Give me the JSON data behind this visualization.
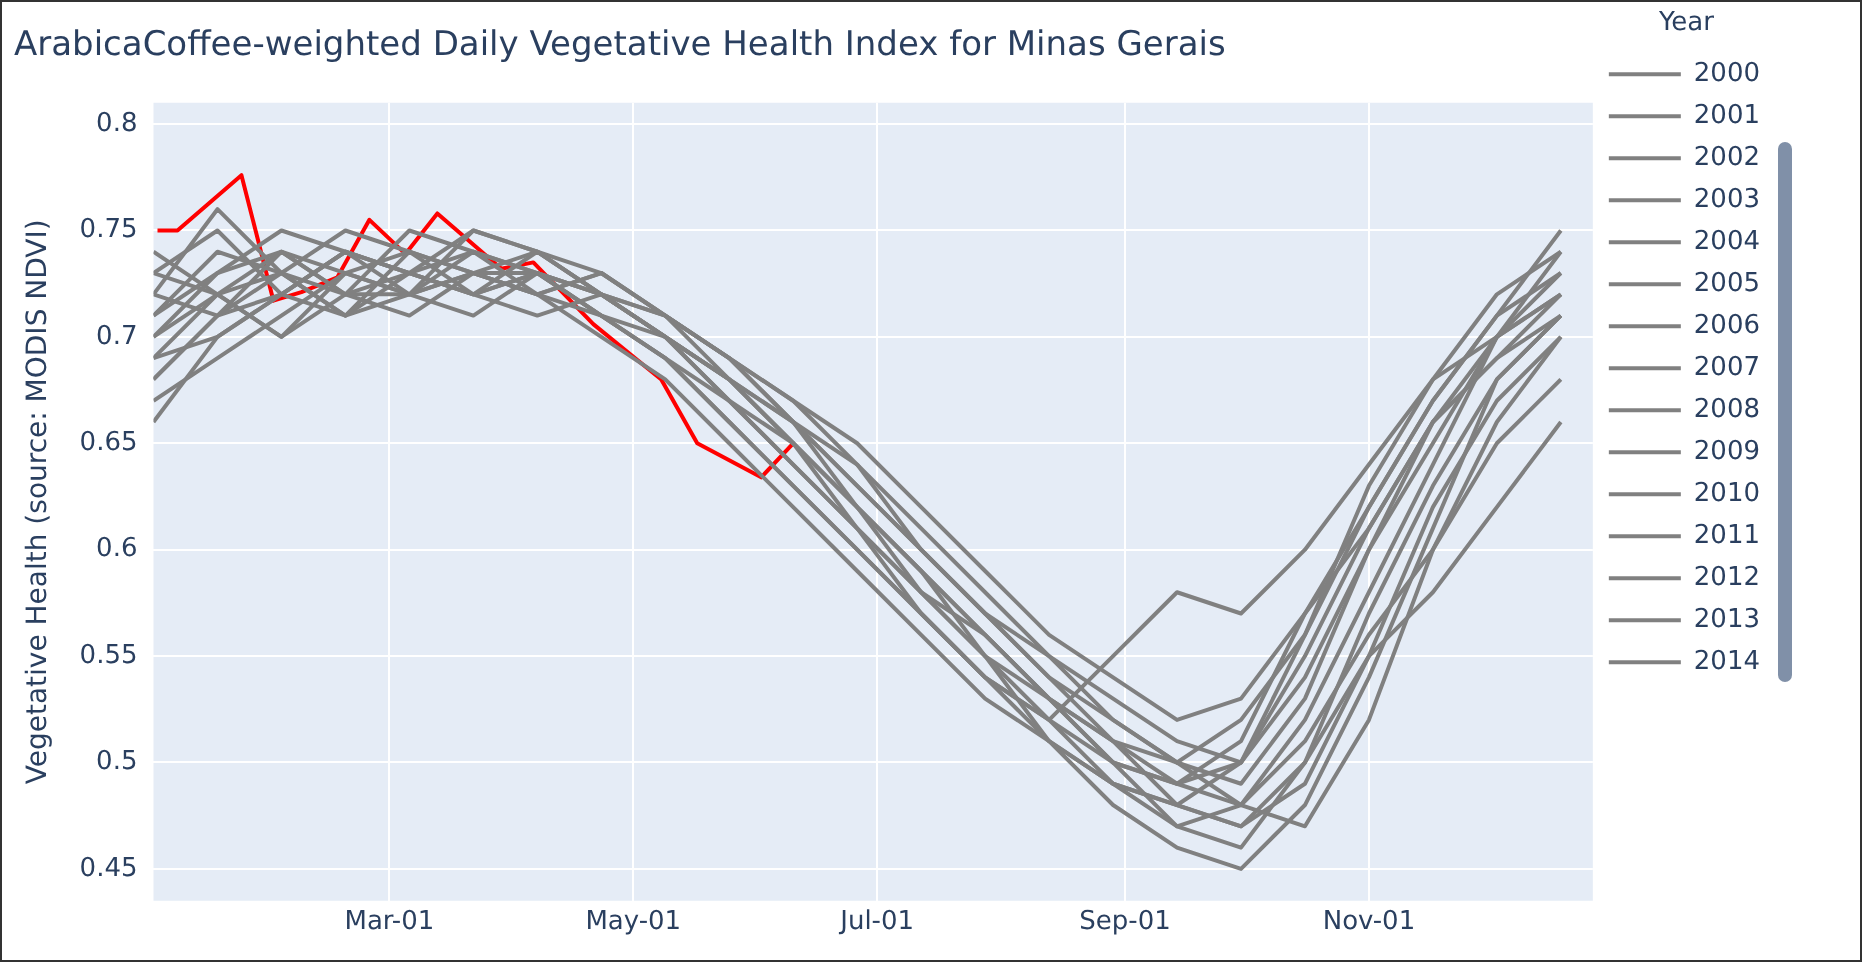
{
  "chart_data": {
    "type": "line",
    "title": "ArabicaCoffee-weighted Daily Vegetative Health Index for Minas Gerais",
    "ylabel": "Vegetative Health (source: MODIS NDVI)",
    "legend_title": "Year",
    "legend": "right",
    "grid": true,
    "marker": "none",
    "line_style": "solid",
    "x": [
      "--01-01",
      "--01-17",
      "--02-02",
      "--02-18",
      "--03-06",
      "--03-22",
      "--04-07",
      "--04-23",
      "--05-09",
      "--05-25",
      "--06-10",
      "--06-26",
      "--07-12",
      "--07-28",
      "--08-13",
      "--08-29",
      "--09-14",
      "--09-30",
      "--10-16",
      "--11-01",
      "--11-17",
      "--12-03",
      "--12-19"
    ],
    "xlim": [
      "--01-01",
      "--12-27"
    ],
    "xticks": [
      {
        "value": "--03-01",
        "label": "Mar-01"
      },
      {
        "value": "--05-01",
        "label": "May-01"
      },
      {
        "value": "--07-01",
        "label": "Jul-01"
      },
      {
        "value": "--09-01",
        "label": "Sep-01"
      },
      {
        "value": "--11-01",
        "label": "Nov-01"
      }
    ],
    "ylim": [
      0.435,
      0.81
    ],
    "yticks": [
      0.45,
      0.5,
      0.55,
      0.6,
      0.65,
      0.7,
      0.75,
      0.8
    ],
    "series": [
      {
        "name": "2000",
        "color": "#808080",
        "values": [
          0.73,
          0.75,
          0.72,
          0.74,
          0.73,
          0.74,
          0.72,
          0.71,
          0.69,
          0.66,
          0.63,
          0.6,
          0.57,
          0.54,
          0.52,
          0.5,
          0.49,
          0.48,
          0.52,
          0.58,
          0.64,
          0.7,
          0.74
        ]
      },
      {
        "name": "2001",
        "color": "#808080",
        "values": [
          0.7,
          0.72,
          0.73,
          0.71,
          0.74,
          0.73,
          0.73,
          0.72,
          0.7,
          0.68,
          0.65,
          0.62,
          0.59,
          0.56,
          0.53,
          0.51,
          0.49,
          0.5,
          0.55,
          0.61,
          0.66,
          0.69,
          0.72
        ]
      },
      {
        "name": "2002",
        "color": "#808080",
        "values": [
          0.68,
          0.71,
          0.74,
          0.72,
          0.72,
          0.75,
          0.74,
          0.73,
          0.71,
          0.69,
          0.66,
          0.63,
          0.6,
          0.57,
          0.54,
          0.51,
          0.48,
          0.47,
          0.49,
          0.55,
          0.62,
          0.67,
          0.7
        ]
      },
      {
        "name": "2003",
        "color": "#808080",
        "values": [
          0.72,
          0.76,
          0.73,
          0.71,
          0.73,
          0.72,
          0.74,
          0.72,
          0.7,
          0.67,
          0.64,
          0.61,
          0.58,
          0.55,
          0.53,
          0.5,
          0.47,
          0.46,
          0.5,
          0.57,
          0.63,
          0.68,
          0.71
        ]
      },
      {
        "name": "2004",
        "color": "#808080",
        "values": [
          0.69,
          0.7,
          0.72,
          0.74,
          0.73,
          0.72,
          0.71,
          0.72,
          0.7,
          0.68,
          0.66,
          0.64,
          0.61,
          0.58,
          0.55,
          0.52,
          0.5,
          0.49,
          0.53,
          0.6,
          0.65,
          0.7,
          0.73
        ]
      },
      {
        "name": "2005",
        "color": "#808080",
        "values": [
          0.71,
          0.73,
          0.74,
          0.72,
          0.75,
          0.74,
          0.73,
          0.71,
          0.69,
          0.67,
          0.64,
          0.61,
          0.58,
          0.56,
          0.53,
          0.51,
          0.5,
          0.52,
          0.56,
          0.62,
          0.67,
          0.71,
          0.75
        ]
      },
      {
        "name": "2006",
        "color": "#808080",
        "values": [
          0.67,
          0.69,
          0.71,
          0.73,
          0.72,
          0.73,
          0.72,
          0.7,
          0.68,
          0.65,
          0.62,
          0.59,
          0.56,
          0.53,
          0.51,
          0.49,
          0.47,
          0.48,
          0.51,
          0.56,
          0.6,
          0.65,
          0.68
        ]
      },
      {
        "name": "2007",
        "color": "#808080",
        "values": [
          0.74,
          0.72,
          0.7,
          0.73,
          0.74,
          0.73,
          0.72,
          0.73,
          0.71,
          0.69,
          0.67,
          0.64,
          0.6,
          0.57,
          0.54,
          0.52,
          0.5,
          0.48,
          0.47,
          0.52,
          0.6,
          0.66,
          0.7
        ]
      },
      {
        "name": "2008",
        "color": "#808080",
        "values": [
          0.66,
          0.7,
          0.72,
          0.71,
          0.72,
          0.74,
          0.73,
          0.71,
          0.7,
          0.67,
          0.65,
          0.62,
          0.59,
          0.55,
          0.52,
          0.49,
          0.48,
          0.5,
          0.56,
          0.63,
          0.68,
          0.72,
          0.74
        ]
      },
      {
        "name": "2009",
        "color": "#808080",
        "values": [
          0.7,
          0.73,
          0.75,
          0.74,
          0.72,
          0.73,
          0.74,
          0.72,
          0.71,
          0.69,
          0.66,
          0.63,
          0.6,
          0.57,
          0.55,
          0.53,
          0.51,
          0.5,
          0.54,
          0.6,
          0.66,
          0.7,
          0.72
        ]
      },
      {
        "name": "2010",
        "color": "#808080",
        "values": [
          0.72,
          0.71,
          0.73,
          0.75,
          0.74,
          0.72,
          0.73,
          0.71,
          0.69,
          0.66,
          0.63,
          0.6,
          0.57,
          0.54,
          0.51,
          0.48,
          0.46,
          0.45,
          0.48,
          0.54,
          0.61,
          0.68,
          0.71
        ]
      },
      {
        "name": "2011",
        "color": "#808080",
        "values": [
          0.69,
          0.72,
          0.7,
          0.72,
          0.73,
          0.75,
          0.74,
          0.72,
          0.7,
          0.68,
          0.65,
          0.62,
          0.59,
          0.56,
          0.53,
          0.5,
          0.49,
          0.51,
          0.57,
          0.62,
          0.67,
          0.71,
          0.73
        ]
      },
      {
        "name": "2012",
        "color": "#808080",
        "values": [
          0.71,
          0.74,
          0.73,
          0.72,
          0.71,
          0.73,
          0.72,
          0.73,
          0.71,
          0.68,
          0.65,
          0.61,
          0.57,
          0.54,
          0.52,
          0.55,
          0.58,
          0.57,
          0.6,
          0.64,
          0.68,
          0.7,
          0.72
        ]
      },
      {
        "name": "2013",
        "color": "#808080",
        "values": [
          0.68,
          0.71,
          0.72,
          0.74,
          0.73,
          0.72,
          0.73,
          0.72,
          0.71,
          0.69,
          0.67,
          0.65,
          0.62,
          0.59,
          0.56,
          0.54,
          0.52,
          0.53,
          0.57,
          0.61,
          0.66,
          0.69,
          0.71
        ]
      },
      {
        "name": "2014",
        "color": "#808080",
        "values": [
          0.73,
          0.72,
          0.74,
          0.73,
          0.72,
          0.71,
          0.73,
          0.72,
          0.7,
          0.68,
          0.66,
          0.62,
          0.58,
          0.55,
          0.51,
          0.49,
          0.48,
          0.47,
          0.5,
          0.55,
          0.58,
          0.62,
          0.66
        ]
      },
      {
        "color": "#ff0000",
        "x": [
          "--01-02",
          "--01-07",
          "--01-23",
          "--01-31",
          "--02-07",
          "--02-16",
          "--02-24",
          "--03-05",
          "--03-13",
          "--03-29",
          "--04-06",
          "--04-21",
          "--05-08",
          "--05-17",
          "--06-02",
          "--06-10"
        ],
        "values": [
          0.75,
          0.75,
          0.776,
          0.717,
          0.721,
          0.728,
          0.755,
          0.739,
          0.758,
          0.732,
          0.735,
          0.706,
          0.68,
          0.65,
          0.634,
          0.65
        ]
      }
    ]
  }
}
